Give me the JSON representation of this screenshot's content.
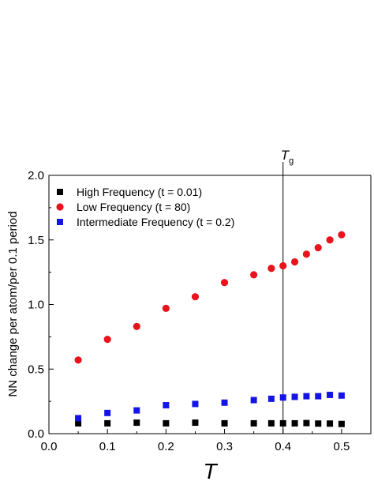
{
  "chart_data": {
    "type": "scatter",
    "xlabel": "T",
    "ylabel": "NN change per atom/per 0.1 period",
    "xlim": [
      0.0,
      0.55
    ],
    "ylim": [
      0.0,
      2.0
    ],
    "xticks": [
      "0.0",
      "0.1",
      "0.2",
      "0.3",
      "0.4",
      "0.5"
    ],
    "yticks": [
      "0.0",
      "0.5",
      "1.0",
      "1.5",
      "2.0"
    ],
    "grid": false,
    "legend_position": "top-left",
    "annotation": {
      "x": 0.4,
      "label_main": "T",
      "label_sub": "g"
    },
    "series": [
      {
        "name": "High Frequency (t = 0.01)",
        "marker": "square",
        "color": "#000000",
        "x": [
          0.05,
          0.1,
          0.15,
          0.2,
          0.25,
          0.3,
          0.35,
          0.38,
          0.4,
          0.42,
          0.44,
          0.46,
          0.48,
          0.5
        ],
        "y": [
          0.08,
          0.08,
          0.085,
          0.08,
          0.085,
          0.08,
          0.08,
          0.08,
          0.08,
          0.08,
          0.082,
          0.078,
          0.078,
          0.075
        ]
      },
      {
        "name": "Low Frequency (t = 80)",
        "marker": "circle",
        "color": "#e8141c",
        "x": [
          0.05,
          0.1,
          0.15,
          0.2,
          0.25,
          0.3,
          0.35,
          0.38,
          0.4,
          0.42,
          0.44,
          0.46,
          0.48,
          0.5
        ],
        "y": [
          0.57,
          0.73,
          0.83,
          0.97,
          1.06,
          1.17,
          1.23,
          1.28,
          1.3,
          1.33,
          1.39,
          1.44,
          1.5,
          1.54
        ]
      },
      {
        "name": "Intermediate Frequency (t = 0.2)",
        "marker": "square",
        "color": "#1414e6",
        "x": [
          0.05,
          0.1,
          0.15,
          0.2,
          0.25,
          0.3,
          0.35,
          0.38,
          0.4,
          0.42,
          0.44,
          0.46,
          0.48,
          0.5
        ],
        "y": [
          0.12,
          0.16,
          0.18,
          0.22,
          0.23,
          0.24,
          0.26,
          0.27,
          0.28,
          0.285,
          0.29,
          0.29,
          0.3,
          0.295
        ]
      }
    ]
  }
}
